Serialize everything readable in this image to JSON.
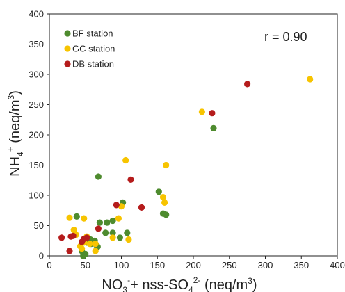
{
  "chart_data": {
    "type": "scatter",
    "title": "",
    "xlabel": {
      "p1": "NO",
      "s1": "3",
      "sup1": "-",
      "p2": "+ nss-SO",
      "s2": "4",
      "sup2": "2-",
      "p3": " (neq/m",
      "sup3": "3",
      "p4": ")"
    },
    "ylabel": {
      "p1": "NH",
      "s1": "4",
      "sup1": "+",
      "p2": " (neq/m",
      "sup2": "3",
      "p3": ")"
    },
    "xlim": [
      0,
      400
    ],
    "ylim": [
      0,
      400
    ],
    "xticks": [
      "0",
      "50",
      "100",
      "150",
      "200",
      "250",
      "300",
      "350",
      "400"
    ],
    "yticks": [
      "0",
      "50",
      "100",
      "150",
      "200",
      "250",
      "300",
      "350",
      "400"
    ],
    "grid": false,
    "legend_position": "top-left",
    "annotation": "r = 0.90",
    "series": [
      {
        "name": "BF station",
        "color": "#4E8B2E",
        "points": [
          [
            47,
            0
          ],
          [
            50,
            3
          ],
          [
            38,
            65
          ],
          [
            68,
            131
          ],
          [
            70,
            55
          ],
          [
            80,
            55
          ],
          [
            88,
            58
          ],
          [
            98,
            30
          ],
          [
            102,
            88
          ],
          [
            108,
            38
          ],
          [
            88,
            38
          ],
          [
            78,
            38
          ],
          [
            57,
            27
          ],
          [
            63,
            25
          ],
          [
            65,
            18
          ],
          [
            58,
            20
          ],
          [
            67,
            15
          ],
          [
            45,
            8
          ],
          [
            152,
            106
          ],
          [
            158,
            70
          ],
          [
            162,
            68
          ],
          [
            228,
            211
          ],
          [
            52,
            22
          ]
        ]
      },
      {
        "name": "GC station",
        "color": "#F7C400",
        "points": [
          [
            28,
            63
          ],
          [
            34,
            43
          ],
          [
            37,
            35
          ],
          [
            48,
            22
          ],
          [
            43,
            16
          ],
          [
            45,
            12
          ],
          [
            52,
            32
          ],
          [
            64,
            20
          ],
          [
            56,
            20
          ],
          [
            64,
            8
          ],
          [
            48,
            62
          ],
          [
            96,
            62
          ],
          [
            88,
            30
          ],
          [
            100,
            82
          ],
          [
            106,
            158
          ],
          [
            110,
            27
          ],
          [
            158,
            97
          ],
          [
            162,
            150
          ],
          [
            160,
            88
          ],
          [
            212,
            238
          ],
          [
            362,
            292
          ]
        ]
      },
      {
        "name": "DB station",
        "color": "#B51C1C",
        "points": [
          [
            17,
            30
          ],
          [
            28,
            8
          ],
          [
            30,
            32
          ],
          [
            33,
            33
          ],
          [
            45,
            23
          ],
          [
            48,
            28
          ],
          [
            52,
            30
          ],
          [
            68,
            45
          ],
          [
            113,
            126
          ],
          [
            128,
            80
          ],
          [
            93,
            84
          ],
          [
            226,
            236
          ],
          [
            275,
            284
          ]
        ]
      }
    ]
  }
}
